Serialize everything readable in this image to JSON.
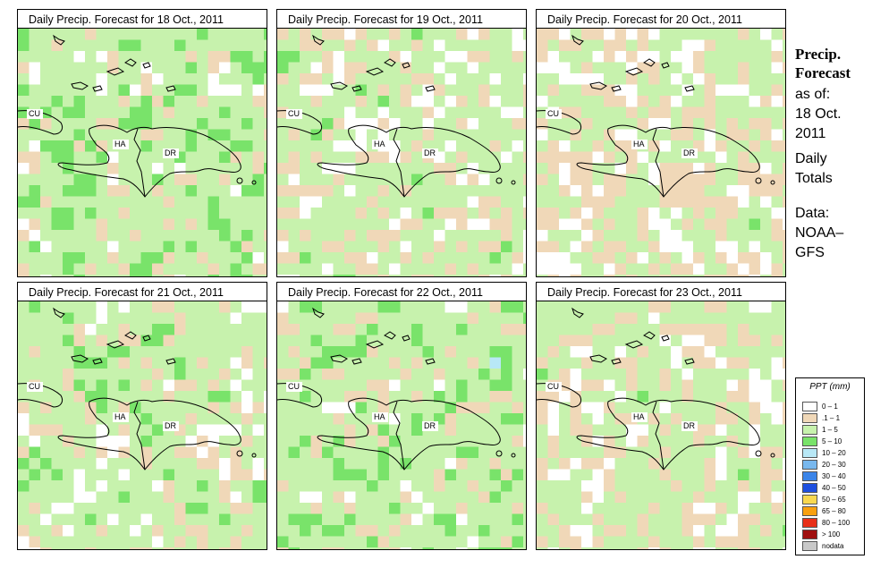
{
  "colors": {
    "none": "#ffffff",
    "trace": "#f0d8b8",
    "light": "#c7f2ad",
    "moderate": "#79e36a",
    "heavy": "#b8e8f6",
    "very_heavy": "#78b8ee",
    "extreme": "#3a84e8"
  },
  "panels": [
    {
      "title": "Daily Precip. Forecast for  18 Oct., 2011"
    },
    {
      "title": "Daily Precip. Forecast for  19 Oct., 2011"
    },
    {
      "title": "Daily Precip. Forecast for  20 Oct., 2011"
    },
    {
      "title": "Daily Precip. Forecast for  21 Oct., 2011"
    },
    {
      "title": "Daily Precip. Forecast for  22 Oct., 2011"
    },
    {
      "title": "Daily Precip. Forecast for  23 Oct., 2011"
    }
  ],
  "map_labels": {
    "cu": "CU",
    "ha": "HA",
    "dr": "DR"
  },
  "sidebar": {
    "title_line1": "Precip.",
    "title_line2": "Forecast",
    "asof_line1": "as of:",
    "asof_line2": "18 Oct.",
    "asof_line3": "2011",
    "type_line1": "Daily",
    "type_line2": "Totals",
    "data_line1": "Data:",
    "data_line2": "NOAA–",
    "data_line3": "GFS"
  },
  "legend": {
    "title": "PPT (mm)",
    "items": [
      {
        "label": "0 – 1",
        "color": "#ffffff"
      },
      {
        "label": ".1 – 1",
        "color": "#f0d8b8"
      },
      {
        "label": "1 – 5",
        "color": "#c7f2ad"
      },
      {
        "label": "5 – 10",
        "color": "#79e36a"
      },
      {
        "label": "10 – 20",
        "color": "#b8e8f6"
      },
      {
        "label": "20 – 30",
        "color": "#78b8ee"
      },
      {
        "label": "30 – 40",
        "color": "#3a84e8"
      },
      {
        "label": "40 – 50",
        "color": "#1e50e0"
      },
      {
        "label": "50 – 65",
        "color": "#f8d850"
      },
      {
        "label": "65 – 80",
        "color": "#f8a010"
      },
      {
        "label": "80 – 100",
        "color": "#e83018"
      },
      {
        "label": "> 100",
        "color": "#a01010"
      },
      {
        "label": "nodata",
        "color": "#c8c8c8"
      }
    ]
  }
}
